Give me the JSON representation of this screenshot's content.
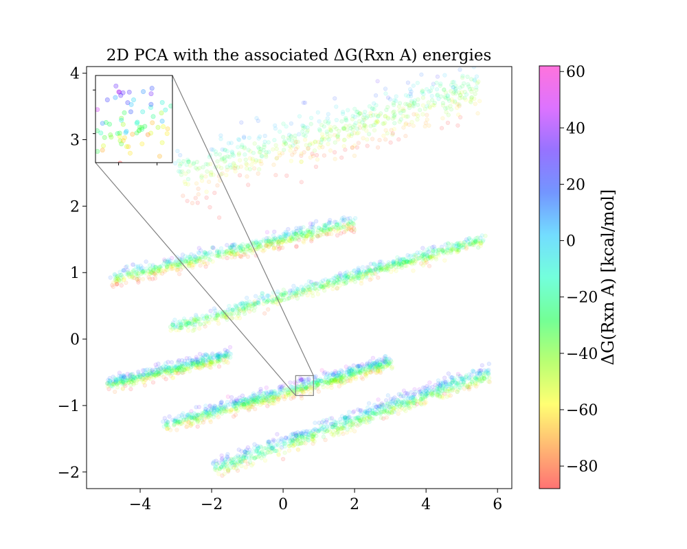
{
  "chart_data": {
    "type": "scatter",
    "title": "2D PCA with the associated ΔG(Rxn A) energies",
    "xlim": [
      -5.5,
      6.4
    ],
    "ylim": [
      -2.25,
      4.1
    ],
    "x_ticks": [
      -4,
      -2,
      0,
      2,
      4,
      6
    ],
    "x_tick_labels": [
      "−4",
      "−2",
      "0",
      "2",
      "4",
      "6"
    ],
    "y_ticks": [
      -2,
      -1,
      0,
      1,
      2,
      3,
      4
    ],
    "y_tick_labels": [
      "−2",
      "−1",
      "0",
      "1",
      "2",
      "3",
      "4"
    ],
    "grid": false,
    "point_alpha": 0.1,
    "colormap": {
      "name": "gist_rainbow",
      "range": [
        -88,
        62
      ],
      "colors": [
        "#ff0000",
        "#ff8000",
        "#ffff00",
        "#80ff00",
        "#00ff40",
        "#00ffbf",
        "#00c0ff",
        "#0040ff",
        "#4000ff",
        "#c000ff",
        "#ff00c0"
      ],
      "label": "ΔG(Rxn A) [kcal/mol]",
      "ticks": [
        -80,
        -60,
        -40,
        -20,
        0,
        20,
        40,
        60
      ],
      "tick_labels": [
        "−80",
        "−60",
        "−40",
        "−20",
        "0",
        "20",
        "40",
        "60"
      ]
    },
    "clusters": [
      {
        "x_start": -3.0,
        "x_end": 5.5,
        "y_start": 2.45,
        "y_end": 3.75,
        "n_points": 600,
        "spread": 0.2,
        "energy_low": -80,
        "energy_high": 5
      },
      {
        "x_start": -4.8,
        "x_end": 2.0,
        "y_start": 0.9,
        "y_end": 1.75,
        "n_points": 700,
        "spread": 0.06,
        "energy_low": -80,
        "energy_high": 15
      },
      {
        "x_start": -3.2,
        "x_end": 5.6,
        "y_start": 0.15,
        "y_end": 1.5,
        "n_points": 800,
        "spread": 0.05,
        "energy_low": -55,
        "energy_high": 0
      },
      {
        "x_start": -4.9,
        "x_end": -1.5,
        "y_start": -0.67,
        "y_end": -0.25,
        "n_points": 500,
        "spread": 0.05,
        "energy_low": -60,
        "energy_high": 20
      },
      {
        "x_start": -3.3,
        "x_end": 3.0,
        "y_start": -1.3,
        "y_end": -0.35,
        "n_points": 900,
        "spread": 0.06,
        "energy_low": -70,
        "energy_high": 25
      },
      {
        "x_start": -2.0,
        "x_end": 5.8,
        "y_start": -1.95,
        "y_end": -0.5,
        "n_points": 900,
        "spread": 0.07,
        "energy_low": -60,
        "energy_high": 25
      }
    ],
    "inset": {
      "xlim": [
        0.35,
        0.85
      ],
      "ylim": [
        -0.85,
        -0.55
      ],
      "indicated_box": true,
      "tick_labels_shown": false
    }
  }
}
